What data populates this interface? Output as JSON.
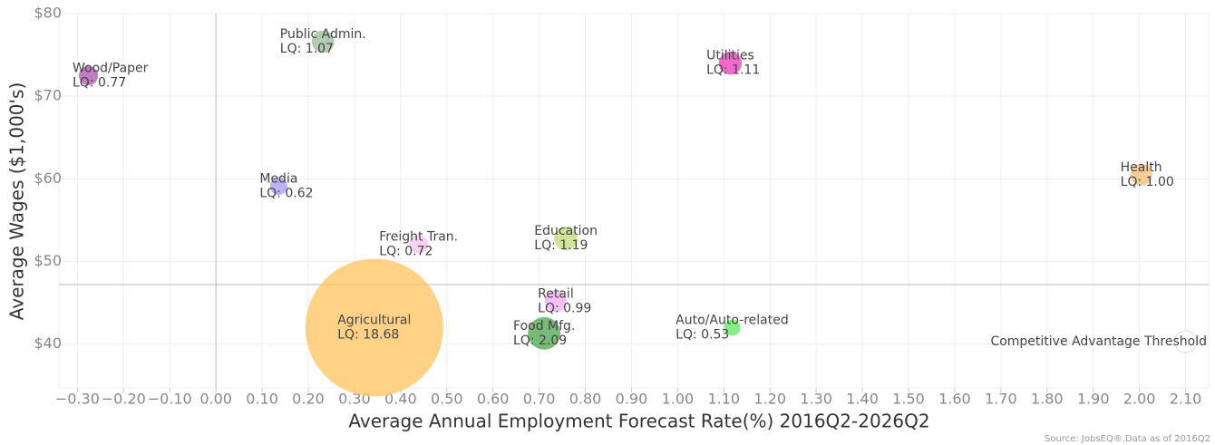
{
  "chart_data": {
    "type": "bubble",
    "x_label": "Average Annual Employment Forecast Rate(%) 2016Q2-2026Q2",
    "y_label": "Average Wages ($1,000's)",
    "source": "Source: JobsEQ®,Data as of 2016Q2",
    "labels": [
      "Wood/Paper",
      "Public Admin.",
      "Utilities",
      "Health",
      "Media",
      "Freight Tran.",
      "Education",
      "Retail",
      "Agricultural",
      "Food Mfg.",
      "Auto/Auto-related"
    ],
    "x": [
      -0.276,
      0.232,
      1.114,
      2.004,
      0.136,
      0.439,
      0.758,
      0.736,
      0.343,
      0.711,
      1.118
    ],
    "y": [
      72.5,
      76.6,
      74.0,
      60.5,
      59.1,
      52.1,
      52.8,
      45.2,
      42.0,
      41.3,
      42.0
    ],
    "sizes": [
      0.77,
      1.07,
      1.11,
      1.0,
      0.62,
      0.72,
      1.19,
      0.99,
      18.68,
      2.09,
      0.53
    ],
    "size_labels": [
      "LQ: 0.77",
      "LQ: 1.07",
      "LQ: 1.11",
      "LQ: 1.00",
      "LQ: 0.62",
      "LQ: 0.72",
      "LQ: 1.19",
      "LQ: 0.99",
      "LQ: 18.68",
      "LQ: 2.09",
      "LQ: 0.53"
    ],
    "colors": [
      "#b05cb0",
      "#9dbf9d",
      "#ee44bb",
      "#f5c27a",
      "#a9a0ee",
      "#f5c8f0",
      "#c8dd80",
      "#f0b0f0",
      "#ffc766",
      "#55aa55",
      "#66ee66"
    ],
    "threshold": {
      "label": "Competitive Advantage Threshold",
      "x": 2.1,
      "y": 40.3
    },
    "reference_lines": {
      "x": 0,
      "y": 47.2
    },
    "xlim": [
      -0.34,
      2.15
    ],
    "ylim": [
      34.7,
      80
    ],
    "xticks": [
      {
        "value": -0.3,
        "label": "−0.30"
      },
      {
        "value": -0.2,
        "label": "−0.20"
      },
      {
        "value": -0.1,
        "label": "−0.10"
      },
      {
        "value": 0,
        "label": "0.00"
      },
      {
        "value": 0.1,
        "label": "0.10"
      },
      {
        "value": 0.2,
        "label": "0.20"
      },
      {
        "value": 0.3,
        "label": "0.30"
      },
      {
        "value": 0.4,
        "label": "0.40"
      },
      {
        "value": 0.5,
        "label": "0.50"
      },
      {
        "value": 0.6,
        "label": "0.60"
      },
      {
        "value": 0.7,
        "label": "0.70"
      },
      {
        "value": 0.8,
        "label": "0.80"
      },
      {
        "value": 0.9,
        "label": "0.90"
      },
      {
        "value": 1.0,
        "label": "1.00"
      },
      {
        "value": 1.1,
        "label": "1.10"
      },
      {
        "value": 1.2,
        "label": "1.20"
      },
      {
        "value": 1.3,
        "label": "1.30"
      },
      {
        "value": 1.4,
        "label": "1.40"
      },
      {
        "value": 1.5,
        "label": "1.50"
      },
      {
        "value": 1.6,
        "label": "1.60"
      },
      {
        "value": 1.7,
        "label": "1.70"
      },
      {
        "value": 1.8,
        "label": "1.80"
      },
      {
        "value": 1.9,
        "label": "1.90"
      },
      {
        "value": 2.0,
        "label": "2.00"
      },
      {
        "value": 2.1,
        "label": "2.10"
      }
    ],
    "yticks": [
      {
        "value": 40,
        "label": "$40"
      },
      {
        "value": 50,
        "label": "$50"
      },
      {
        "value": 60,
        "label": "$60"
      },
      {
        "value": 70,
        "label": "$70"
      },
      {
        "value": 80,
        "label": "$80"
      }
    ],
    "grid": true
  }
}
